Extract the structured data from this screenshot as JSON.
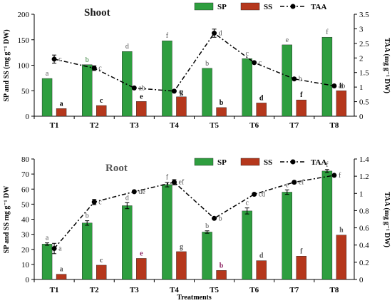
{
  "chart_data": [
    {
      "type": "bar",
      "title": "Shoot",
      "categories": [
        "T1",
        "T2",
        "T3",
        "T4",
        "T5",
        "T6",
        "T7",
        "T8"
      ],
      "xlabel": "",
      "ylabel": "SP and SS (mg g⁻¹ DW)",
      "y2label": "TAA (mg g⁻¹ DW)",
      "ylim": [
        0,
        200
      ],
      "yticks": [
        0,
        50,
        100,
        150,
        200
      ],
      "y2lim": [
        0,
        3.5
      ],
      "y2ticks": [
        0,
        0.5,
        1,
        1.5,
        2,
        2.5,
        3,
        3.5
      ],
      "y2tick_labels": [
        "0",
        "0.5",
        "1",
        "1.5",
        "2",
        "2.5",
        "3",
        "3.5"
      ],
      "legend_position": "top",
      "grid": false,
      "series": [
        {
          "name": "SP",
          "kind": "bar",
          "axis": "left",
          "color": "#2e9e3f",
          "values": [
            74,
            101,
            127,
            148,
            94,
            113,
            140,
            155
          ],
          "errors": [
            0,
            0,
            0,
            0,
            0,
            0,
            0,
            0
          ],
          "letters": [
            "a",
            "b",
            "d",
            "f",
            "b",
            "c",
            "e",
            "f"
          ],
          "letter_colors": [
            "#555555",
            "#2e7d32",
            "#555555",
            "#555555",
            "#555555",
            "#555555",
            "#555555",
            "#555555"
          ]
        },
        {
          "name": "SS",
          "kind": "bar",
          "axis": "left",
          "color": "#b5371c",
          "values": [
            15,
            21,
            29,
            38,
            17,
            26,
            32,
            50
          ],
          "errors": [
            0,
            0,
            0,
            0,
            0,
            0,
            0,
            0
          ],
          "letters": [
            "a",
            "c",
            "e",
            "g",
            "b",
            "d",
            "f",
            "h"
          ],
          "letter_colors": [
            "#000000",
            "#000000",
            "#000000",
            "#000000",
            "#000000",
            "#000000",
            "#000000",
            "#000000"
          ]
        },
        {
          "name": "TAA",
          "kind": "line",
          "axis": "right",
          "color": "#000000",
          "values": [
            1.96,
            1.65,
            0.97,
            0.86,
            2.85,
            1.84,
            1.28,
            1.04
          ],
          "errors": [
            0.14,
            0.08,
            0,
            0,
            0.14,
            0,
            0,
            0
          ],
          "letters": [
            "c",
            "c",
            "ab",
            "a",
            "d",
            "c",
            "b",
            "ab"
          ],
          "letter_colors": [
            "#555555",
            "#555555",
            "#555555",
            "#555555",
            "#555555",
            "#555555",
            "#555555",
            "#555555"
          ]
        }
      ]
    },
    {
      "type": "bar",
      "title": "Root",
      "categories": [
        "T1",
        "T2",
        "T3",
        "T4",
        "T5",
        "T6",
        "T7",
        "T8"
      ],
      "xlabel": "Treatments",
      "ylabel": "SP and SS mg g⁻¹ DW",
      "y2label": "TAA (mg g⁻¹ DW)",
      "ylim": [
        0,
        80
      ],
      "yticks": [
        0,
        10,
        20,
        30,
        40,
        50,
        60,
        70,
        80
      ],
      "y2lim": [
        0,
        1.4
      ],
      "y2ticks": [
        0,
        0.2,
        0.4,
        0.6,
        0.8,
        1,
        1.2,
        1.4
      ],
      "y2tick_labels": [
        "0",
        "0.2",
        "0.4",
        "0.6",
        "0.8",
        "1",
        "1.2",
        "1.4"
      ],
      "legend_position": "top",
      "grid": false,
      "series": [
        {
          "name": "SP",
          "kind": "bar",
          "axis": "left",
          "color": "#2e9e3f",
          "values": [
            23.5,
            37.5,
            49,
            63,
            31.5,
            45.5,
            58,
            72
          ],
          "errors": [
            0.8,
            1.5,
            2.0,
            1.5,
            0.8,
            2.0,
            1.5,
            1.0
          ],
          "letters": [
            "a",
            "b",
            "d",
            "f",
            "b",
            "c",
            "e",
            "f"
          ],
          "letter_colors": [
            "#555555",
            "#555555",
            "#555555",
            "#555555",
            "#555555",
            "#555555",
            "#555555",
            "#555555"
          ]
        },
        {
          "name": "SS",
          "kind": "bar",
          "axis": "left",
          "color": "#b5371c",
          "values": [
            3.5,
            9.5,
            14,
            18.5,
            6,
            12.5,
            15.5,
            29.5
          ],
          "errors": [
            0,
            0,
            0,
            0,
            0,
            0,
            0,
            0
          ],
          "letters": [
            "a",
            "c",
            "e",
            "g",
            "b",
            "d",
            "f",
            "h"
          ],
          "letter_colors": [
            "#555555",
            "#555555",
            "#8b2060",
            "#555555",
            "#8b2060",
            "#555555",
            "#555555",
            "#555555"
          ]
        },
        {
          "name": "TAA",
          "kind": "line",
          "axis": "right",
          "color": "#000000",
          "values": [
            0.36,
            0.9,
            1.02,
            1.13,
            0.71,
            0.99,
            1.13,
            1.21
          ],
          "errors": [
            0.06,
            0.03,
            0,
            0.03,
            0,
            0,
            0,
            0
          ],
          "letters": [
            "a",
            "c",
            "de",
            "ef",
            "b",
            "cd",
            "ef",
            "f"
          ],
          "letter_colors": [
            "#555555",
            "#555555",
            "#555555",
            "#555555",
            "#555555",
            "#555555",
            "#555555",
            "#555555"
          ]
        }
      ]
    }
  ],
  "panel_title_colors": [
    "#1a1a1a",
    "#555555"
  ]
}
